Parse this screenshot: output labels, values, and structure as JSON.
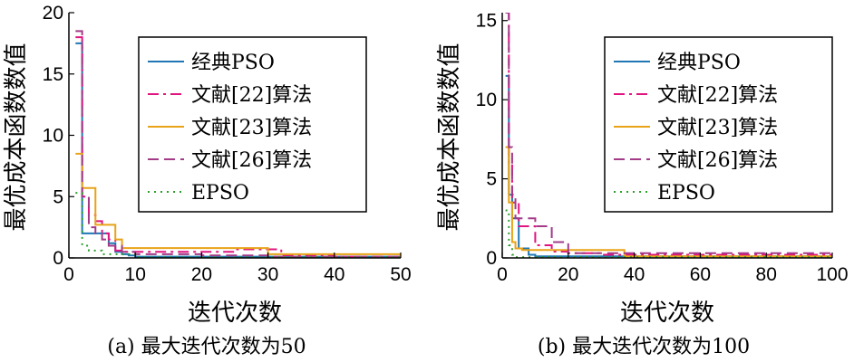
{
  "chart_data": [
    {
      "type": "line",
      "caption": "(a) 最大迭代次数为50",
      "xlabel": "迭代次数",
      "ylabel": "最优成本函数数值",
      "xlim": [
        0,
        50
      ],
      "ylim": [
        0,
        20
      ],
      "xticks": [
        0,
        10,
        20,
        30,
        40,
        50
      ],
      "yticks": [
        0,
        5,
        10,
        15,
        20
      ],
      "legend_position": "top-right",
      "series": [
        {
          "name": "经典PSO",
          "color": "#1f77b4",
          "dash": "solid",
          "x": [
            1,
            2,
            3,
            4,
            5,
            6,
            7,
            8,
            9,
            10,
            50
          ],
          "y": [
            17.5,
            2.0,
            2.0,
            2.0,
            2.0,
            1.2,
            0.5,
            0.3,
            0.2,
            0.1,
            0.05
          ]
        },
        {
          "name": "文献[22]算法",
          "color": "#e0157f",
          "dash": "dashdot",
          "x": [
            1,
            2,
            3,
            4,
            5,
            6,
            7,
            8,
            10,
            20,
            25,
            30,
            32,
            40,
            50
          ],
          "y": [
            18.0,
            5.0,
            3.5,
            3.0,
            2.0,
            1.5,
            0.6,
            0.5,
            0.5,
            0.5,
            0.7,
            0.7,
            0.2,
            0.1,
            0.1
          ]
        },
        {
          "name": "文献[23]算法",
          "color": "#e8a317",
          "dash": "solid",
          "x": [
            1,
            2,
            3,
            4,
            5,
            6,
            7,
            8,
            16,
            30,
            50
          ],
          "y": [
            8.5,
            5.7,
            5.7,
            2.7,
            2.7,
            2.7,
            1.5,
            0.8,
            0.8,
            0.3,
            0.1
          ]
        },
        {
          "name": "文献[26]算法",
          "color": "#a23b88",
          "dash": "dashed",
          "x": [
            1,
            2,
            3,
            4,
            5,
            6,
            8,
            10,
            20,
            30,
            50
          ],
          "y": [
            18.5,
            5.0,
            2.5,
            2.0,
            1.5,
            1.0,
            0.5,
            0.3,
            0.2,
            0.1,
            0.05
          ]
        },
        {
          "name": "EPSO",
          "color": "#2ca02c",
          "dash": "dotted",
          "x": [
            1,
            2,
            3,
            5,
            10,
            50
          ],
          "y": [
            5.3,
            1.0,
            0.6,
            0.3,
            0.05,
            0.0
          ]
        }
      ]
    },
    {
      "type": "line",
      "caption": "(b) 最大迭代次数为100",
      "xlabel": "迭代次数",
      "ylabel": "最优成本函数数值",
      "xlim": [
        0,
        100
      ],
      "ylim": [
        0,
        15.5
      ],
      "xticks": [
        0,
        20,
        40,
        60,
        80,
        100
      ],
      "yticks": [
        0,
        5,
        10,
        15
      ],
      "legend_position": "top-right",
      "series": [
        {
          "name": "经典PSO",
          "color": "#1f77b4",
          "dash": "solid",
          "x": [
            1,
            2,
            3,
            5,
            8,
            10,
            100
          ],
          "y": [
            11.5,
            4.0,
            2.5,
            0.6,
            0.2,
            0.1,
            0.05
          ]
        },
        {
          "name": "文献[22]算法",
          "color": "#e0157f",
          "dash": "dashdot",
          "x": [
            1,
            2,
            3,
            5,
            8,
            10,
            14,
            15,
            20,
            25,
            30,
            100
          ],
          "y": [
            15.5,
            6.0,
            3.5,
            2.0,
            2.0,
            0.8,
            0.8,
            0.4,
            0.3,
            0.3,
            0.2,
            0.15
          ]
        },
        {
          "name": "文献[23]算法",
          "color": "#e8a317",
          "dash": "solid",
          "x": [
            1,
            2,
            3,
            4,
            6,
            36,
            37,
            100
          ],
          "y": [
            7.0,
            3.5,
            1.0,
            0.6,
            0.5,
            0.5,
            0.1,
            0.1
          ]
        },
        {
          "name": "文献[26]算法",
          "color": "#a23b88",
          "dash": "dashed",
          "x": [
            1,
            2,
            3,
            4,
            6,
            10,
            15,
            20,
            100
          ],
          "y": [
            15.5,
            7.0,
            4.0,
            2.5,
            2.5,
            2.0,
            1.0,
            0.3,
            0.1
          ]
        },
        {
          "name": "EPSO",
          "color": "#2ca02c",
          "dash": "dotted",
          "x": [
            1,
            2,
            3,
            4,
            100
          ],
          "y": [
            3.0,
            0.8,
            0.2,
            0.05,
            0.0
          ]
        }
      ]
    }
  ]
}
